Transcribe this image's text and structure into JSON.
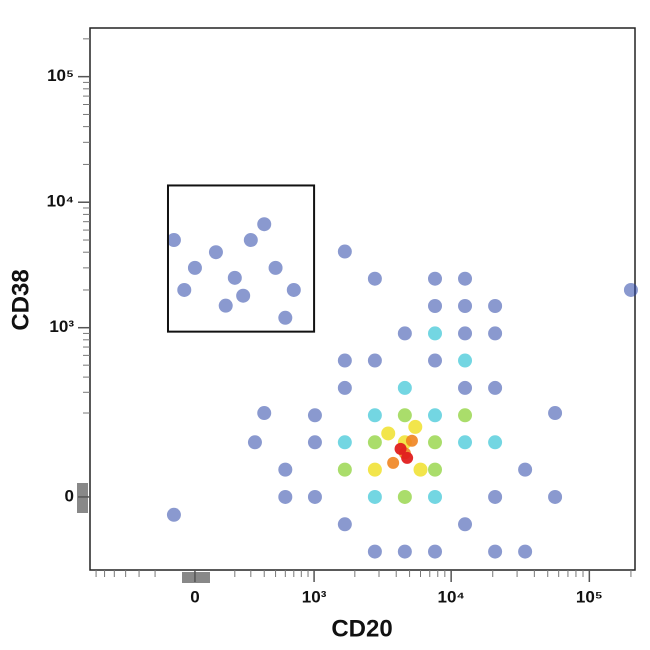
{
  "chart_data": {
    "type": "scatter",
    "x_label": "CD20",
    "y_label": "CD38",
    "xscale": {
      "type": "biexponential",
      "width": 280
    },
    "yscale": {
      "type": "biexponential",
      "width": 90
    },
    "xlim": [
      -780,
      214000
    ],
    "ylim": [
      -160,
      244000
    ],
    "xticks": [
      0,
      {
        "value": 1000,
        "label": "10³"
      },
      {
        "value": 10000,
        "label": "10⁴"
      },
      {
        "value": 100000,
        "label": "10⁵"
      }
    ],
    "yticks": [
      0,
      {
        "value": 1000,
        "label": "10³"
      },
      {
        "value": 10000,
        "label": "10⁴"
      },
      {
        "value": 100000,
        "label": "10⁵"
      }
    ],
    "xminorticks": [
      -700,
      -600,
      -500,
      -400,
      -300,
      -200,
      200,
      300,
      400,
      500,
      600,
      700,
      800,
      900,
      2000,
      3000,
      4000,
      5000,
      6000,
      7000,
      8000,
      9000,
      20000,
      30000,
      40000,
      50000,
      60000,
      70000,
      80000,
      90000,
      200000
    ],
    "yminorticks": [
      200,
      300,
      400,
      500,
      600,
      700,
      800,
      900,
      2000,
      3000,
      4000,
      5000,
      6000,
      7000,
      8000,
      9000,
      20000,
      30000,
      40000,
      50000,
      60000,
      70000,
      80000,
      90000,
      200000
    ],
    "gate": {
      "x": [
        -130,
        1000
      ],
      "y": [
        930,
        13600
      ]
    },
    "series": [
      {
        "color": "#2a45a8",
        "x": [
          1015,
          1690,
          600,
          1015,
          2800,
          7640,
          12600,
          20800,
          34300,
          20800,
          12600,
          7640,
          12600,
          20800,
          4620,
          2800,
          1690,
          600,
          329,
          34300,
          20800,
          56500,
          4620,
          12600,
          7640,
          1015,
          1690,
          7640,
          20800,
          12600,
          0,
          100,
          200,
          -50,
          300,
          500,
          700,
          150,
          400,
          -100,
          600,
          250,
          1690,
          56500,
          2800,
          200000,
          400,
          -100
        ],
        "y": [
          106,
          -47,
          47,
          0,
          -106,
          -106,
          -47,
          0,
          47,
          326,
          900,
          1490,
          2460,
          1490,
          900,
          545,
          326,
          0,
          106,
          -106,
          -106,
          0,
          -106,
          326,
          545,
          191,
          545,
          2460,
          900,
          1490,
          3000,
          4000,
          2500,
          2000,
          5000,
          3000,
          2000,
          1500,
          6680,
          5000,
          1200,
          1800,
          4050,
          200,
          2460,
          2000,
          200,
          -30
        ]
      },
      {
        "color": "#38c4d6",
        "x": [
          2800,
          7640,
          12600,
          4620,
          1690,
          7640,
          12600,
          2800,
          7640,
          20800
        ],
        "y": [
          191,
          191,
          106,
          326,
          106,
          0,
          545,
          0,
          900,
          106
        ]
      },
      {
        "color": "#8ed23a",
        "x": [
          2800,
          4620,
          7640,
          4620,
          1690,
          7640,
          12600
        ],
        "y": [
          106,
          191,
          106,
          0,
          47,
          47,
          191
        ]
      },
      {
        "color": "#f0e02c",
        "x": [
          4620,
          2800,
          6000,
          5500,
          3500
        ],
        "y": [
          106,
          47,
          47,
          150,
          130
        ]
      },
      {
        "color": "#f08420",
        "x": [
          4620,
          3800,
          5200
        ],
        "y": [
          80,
          60,
          110
        ]
      },
      {
        "color": "#e01e1e",
        "x": [
          4300,
          4800
        ],
        "y": [
          90,
          70
        ]
      }
    ]
  }
}
